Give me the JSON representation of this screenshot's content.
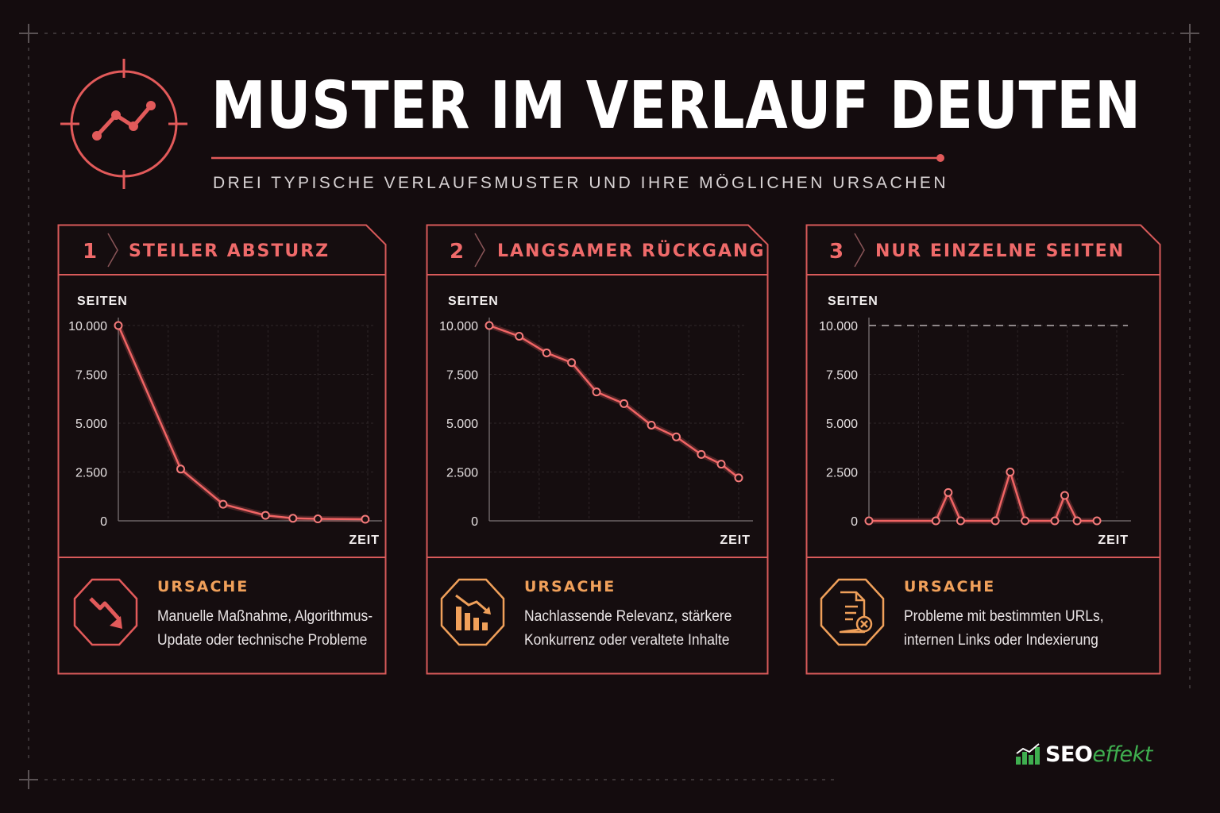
{
  "header": {
    "title": "MUSTER IM VERLAUF DEUTEN",
    "subtitle": "DREI TYPISCHE VERLAUFSMUSTER UND IHRE MÖGLICHEN URSACHEN"
  },
  "cause_label": "URSACHE",
  "logo": {
    "part1": "SEO",
    "part2": "effekt"
  },
  "colors": {
    "background": "#140c0e",
    "accent": "#ef6a6a",
    "cause": "#f0a05a",
    "line": "#f06464",
    "logo_green": "#3fae4f"
  },
  "cards": [
    {
      "number": "1",
      "title": "STEILER ABSTURZ",
      "icon": "falling-arrow-icon",
      "cause_lines": [
        "Manuelle Maßnahme, Algorithmus-",
        "Update oder technische Probleme"
      ]
    },
    {
      "number": "2",
      "title": "LANGSAMER RÜCKGANG",
      "icon": "declining-bars-icon",
      "cause_lines": [
        "Nachlassende Relevanz, stärkere",
        "Konkurrenz oder veraltete Inhalte"
      ]
    },
    {
      "number": "3",
      "title": "NUR EINZELNE SEITEN",
      "icon": "document-error-icon",
      "cause_lines": [
        "Probleme mit bestimmten URLs,",
        "internen Links oder Indexierung"
      ]
    }
  ],
  "chart_data": [
    {
      "type": "line",
      "ylabel": "SEITEN",
      "xlabel": "ZEIT",
      "y_ticks": [
        "10.000",
        "7.500",
        "5.000",
        "2.500",
        "0"
      ],
      "ylim": [
        0,
        10000
      ],
      "xlim": [
        0,
        10
      ],
      "x": [
        0,
        2.5,
        4.2,
        5.9,
        7.0,
        8.0,
        9.9
      ],
      "values": [
        10000,
        2650,
        850,
        280,
        130,
        100,
        80
      ],
      "reference_line": null
    },
    {
      "type": "line",
      "ylabel": "SEITEN",
      "xlabel": "ZEIT",
      "y_ticks": [
        "10.000",
        "7.500",
        "5.000",
        "2.500",
        "0"
      ],
      "ylim": [
        0,
        10000
      ],
      "xlim": [
        0,
        10
      ],
      "x": [
        0,
        1.2,
        2.3,
        3.3,
        4.3,
        5.4,
        6.5,
        7.5,
        8.5,
        9.3,
        10
      ],
      "values": [
        10000,
        9450,
        8600,
        8100,
        6600,
        6000,
        4900,
        4300,
        3400,
        2900,
        2200
      ],
      "reference_line": null
    },
    {
      "type": "line",
      "ylabel": "SEITEN",
      "xlabel": "ZEIT",
      "y_ticks": [
        "10.000",
        "7.500",
        "5.000",
        "2.500",
        "0"
      ],
      "ylim": [
        0,
        10000
      ],
      "xlim": [
        0,
        10
      ],
      "x": [
        0,
        2.7,
        3.2,
        3.7,
        5.1,
        5.7,
        6.3,
        7.5,
        7.9,
        8.4,
        9.2
      ],
      "values": [
        0,
        0,
        1450,
        0,
        0,
        2500,
        0,
        0,
        1300,
        0,
        0
      ],
      "reference_line": 10000
    }
  ]
}
